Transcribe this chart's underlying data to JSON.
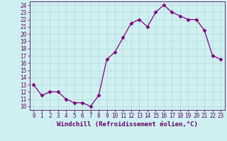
{
  "hours": [
    0,
    1,
    2,
    3,
    4,
    5,
    6,
    7,
    8,
    9,
    10,
    11,
    12,
    13,
    14,
    15,
    16,
    17,
    18,
    19,
    20,
    21,
    22,
    23
  ],
  "temps": [
    13,
    11.5,
    12,
    12,
    11,
    10.5,
    10.5,
    10,
    11.5,
    16.5,
    17.5,
    19.5,
    21.5,
    22,
    21,
    23,
    24,
    23,
    22.5,
    22,
    22,
    20.5,
    17,
    16.5
  ],
  "line_color": "#800080",
  "marker": "D",
  "marker_size": 2.5,
  "bg_color": "#cff0f0",
  "grid_color": "#b0d8d8",
  "xlabel": "Windchill (Refroidissement éolien,°C)",
  "ylim_min": 9.5,
  "ylim_max": 24.5,
  "yticks": [
    10,
    11,
    12,
    13,
    14,
    15,
    16,
    17,
    18,
    19,
    20,
    21,
    22,
    23,
    24
  ],
  "xtick_labels": [
    "0",
    "1",
    "2",
    "3",
    "4",
    "5",
    "6",
    "7",
    "8",
    "9",
    "10",
    "11",
    "12",
    "13",
    "14",
    "15",
    "16",
    "17",
    "18",
    "19",
    "20",
    "21",
    "22",
    "23"
  ],
  "axis_label_color": "#660066",
  "tick_color": "#660066",
  "tick_fontsize": 5.5,
  "xlabel_fontsize": 6.5,
  "line_width": 0.9
}
